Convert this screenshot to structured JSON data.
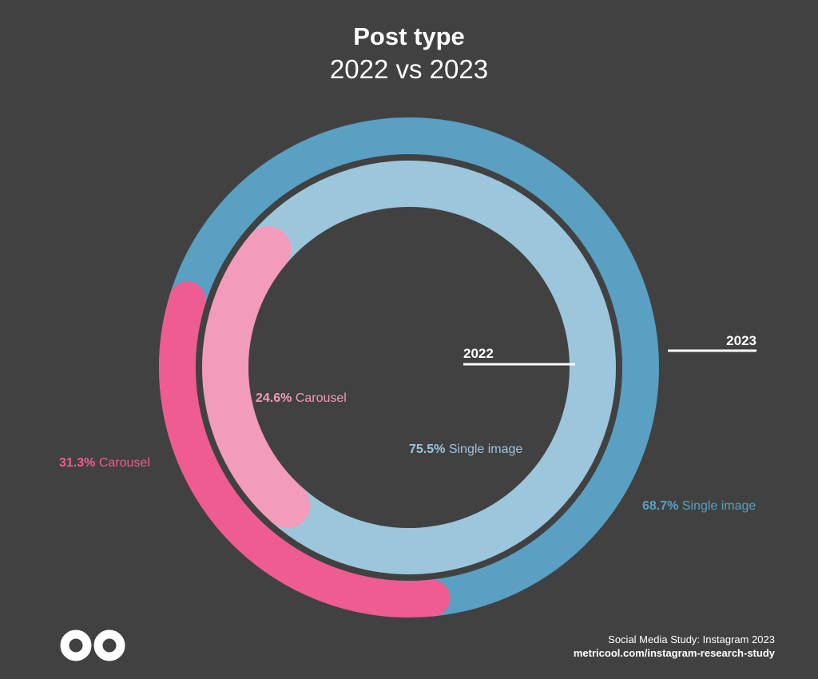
{
  "chart_data": {
    "type": "pie",
    "title": "Post type",
    "subtitle": "2022 vs 2023",
    "series": [
      {
        "name": "2022",
        "ring": "inner",
        "slices": [
          {
            "label": "Carousel",
            "value": 24.6,
            "display": "24.6%",
            "color": "#f29bbb"
          },
          {
            "label": "Single image",
            "value": 75.5,
            "display": "75.5%",
            "color": "#9cc6db"
          }
        ]
      },
      {
        "name": "2023",
        "ring": "outer",
        "slices": [
          {
            "label": "Carousel",
            "value": 31.3,
            "display": "31.3%",
            "color": "#ee5c91"
          },
          {
            "label": "Single image",
            "value": 68.7,
            "display": "68.7%",
            "color": "#59a0c3"
          }
        ]
      }
    ]
  },
  "footer": {
    "source": "Social Media Study: Instagram 2023",
    "url": "metricool.com/instagram-research-study"
  },
  "colors": {
    "background": "#414141",
    "text": "#ffffff"
  },
  "logo_icon": "infinity-logo-icon"
}
